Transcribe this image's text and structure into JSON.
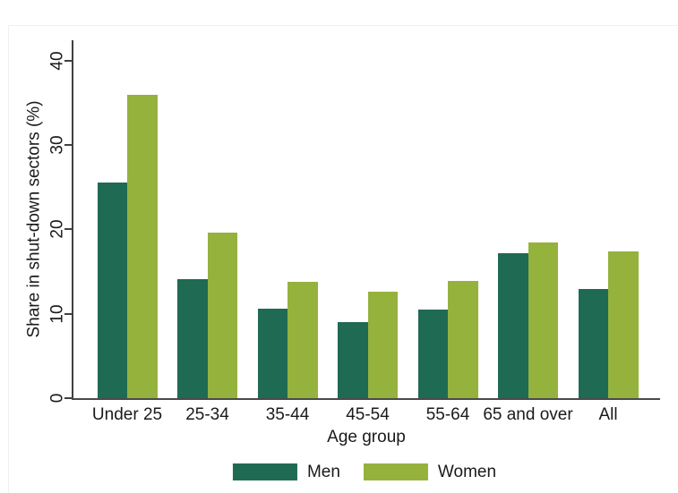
{
  "chart_data": {
    "type": "bar",
    "title": "",
    "categories": [
      "Under 25",
      "25-34",
      "35-44",
      "45-54",
      "55-64",
      "65 and over",
      "All"
    ],
    "series": [
      {
        "name": "Men",
        "color": "#1f6a52",
        "values": [
          25.6,
          14.2,
          10.7,
          9.1,
          10.6,
          17.2,
          13.0
        ]
      },
      {
        "name": "Women",
        "color": "#95b23d",
        "values": [
          36.0,
          19.7,
          13.8,
          12.7,
          13.9,
          18.5,
          17.4
        ]
      }
    ],
    "xlabel": "Age group",
    "ylabel": "Share in shut-down sectors (%)",
    "yticks": [
      0,
      10,
      20,
      30,
      40
    ],
    "ylim": [
      0,
      42.4
    ],
    "grid": false,
    "legend_position": "bottom",
    "axis_color": "#404040",
    "text_color": "#1a1a1a",
    "background_color": "#ffffff"
  }
}
